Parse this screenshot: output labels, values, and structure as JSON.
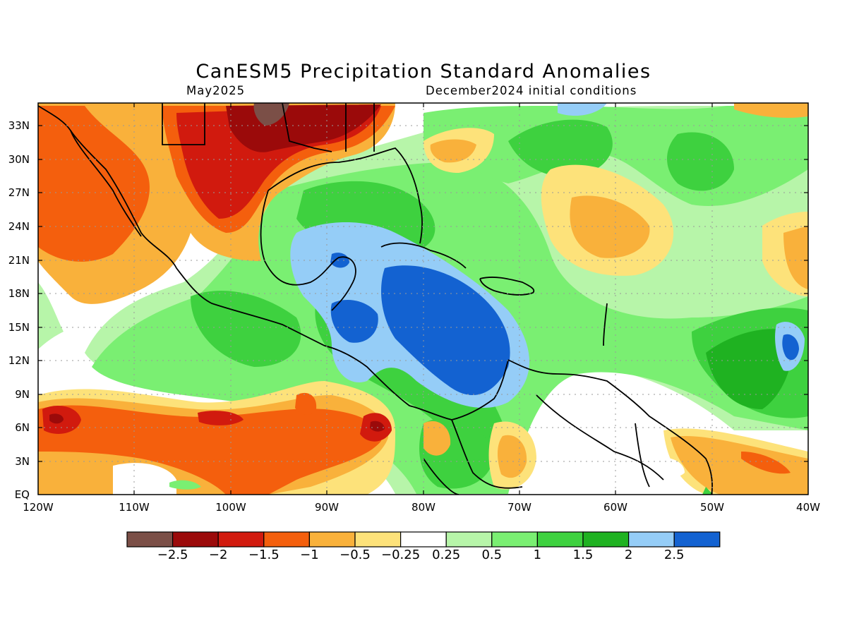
{
  "title": "CanESM5 Precipitation Standard Anomalies",
  "subtitle_left": "May2025",
  "subtitle_right": "December2024 initial conditions",
  "lat_ticks": [
    "33N",
    "30N",
    "27N",
    "24N",
    "21N",
    "18N",
    "15N",
    "12N",
    "9N",
    "6N",
    "3N",
    "EQ"
  ],
  "lon_ticks": [
    "120W",
    "110W",
    "100W",
    "90W",
    "80W",
    "70W",
    "60W",
    "50W",
    "40W"
  ],
  "colorbar": {
    "colors": [
      "#7b4f47",
      "#9b0a0a",
      "#d11a0e",
      "#f45f0d",
      "#f9b13b",
      "#fde27a",
      "#ffffff",
      "#b7f5a9",
      "#7aef72",
      "#3ed13f",
      "#1fb221",
      "#95cdf7",
      "#1362d1"
    ],
    "labels": [
      "−2.5",
      "−2",
      "−1.5",
      "−1",
      "−0.5",
      "−0.25",
      "0.25",
      "0.5",
      "1",
      "1.5",
      "2",
      "2.5"
    ]
  },
  "map_extent": {
    "lon_min": -120,
    "lon_max": -40,
    "lat_min": 0,
    "lat_max": 35
  }
}
